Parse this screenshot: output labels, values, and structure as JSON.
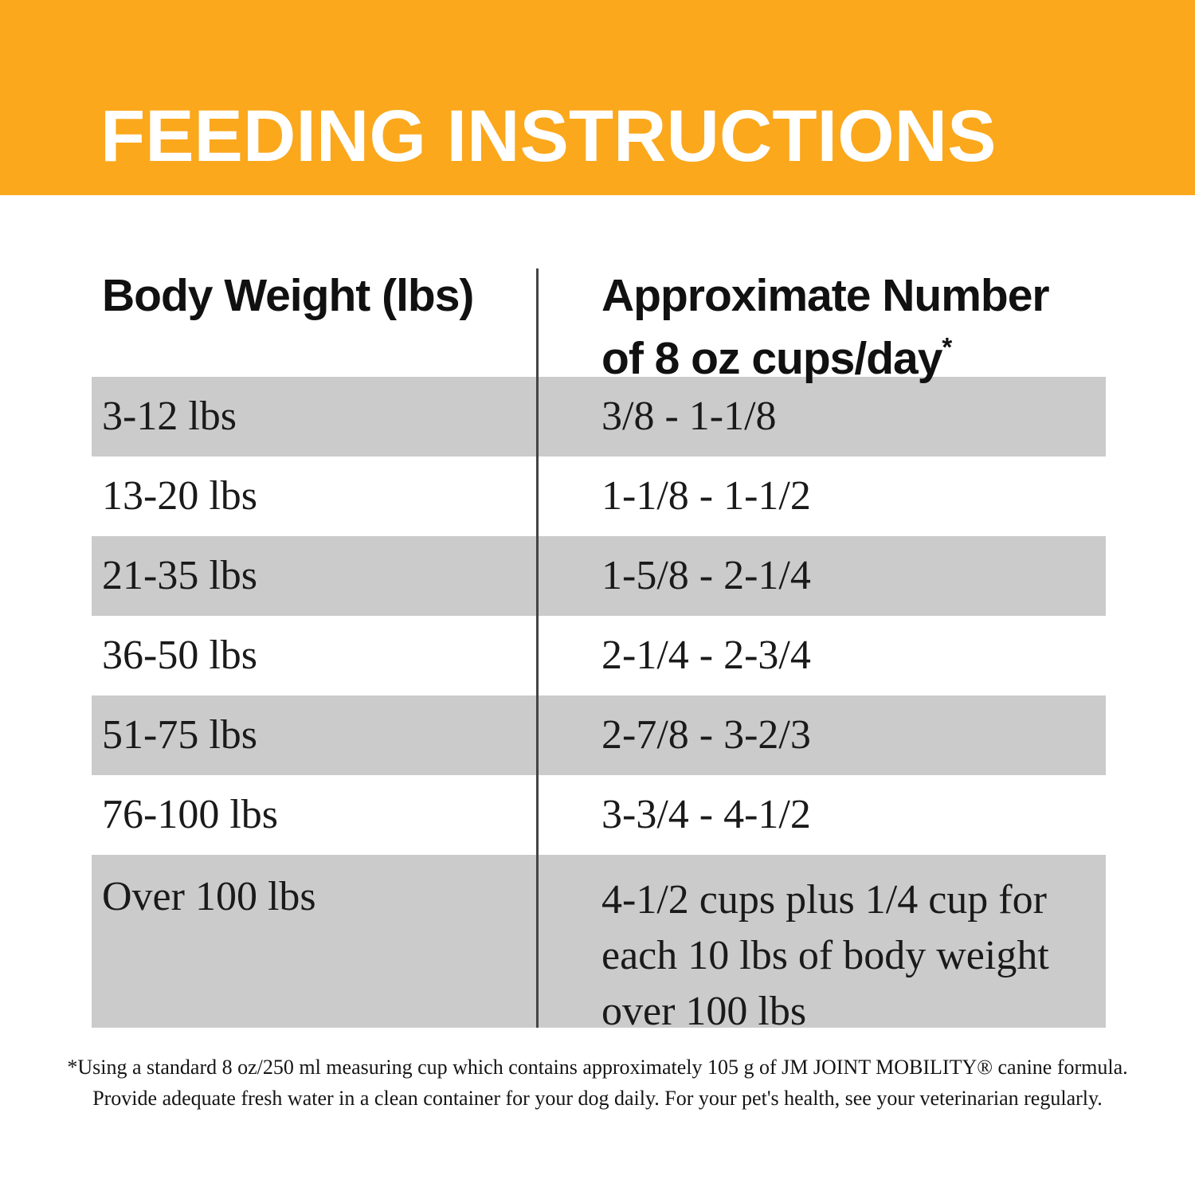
{
  "banner": {
    "title": "FEEDING INSTRUCTIONS"
  },
  "colors": {
    "banner_orange": "#FBA81D",
    "row_gray": "#cbcbcb",
    "divider_gray": "#444444",
    "banner_text": "#ffffff",
    "body_text": "#1a1a1a"
  },
  "table": {
    "header": {
      "col1": "Body Weight (lbs)",
      "col2_line1": "Approximate Number",
      "col2_line2": "of 8 oz cups/day",
      "col2_asterisk": "*"
    },
    "rows": [
      {
        "weight": "3-12 lbs",
        "cups": "3/8 - 1-1/8"
      },
      {
        "weight": "13-20 lbs",
        "cups": "1-1/8 - 1-1/2"
      },
      {
        "weight": "21-35 lbs",
        "cups": "1-5/8 - 2-1/4"
      },
      {
        "weight": "36-50 lbs",
        "cups": "2-1/4 - 2-3/4"
      },
      {
        "weight": "51-75 lbs",
        "cups": "2-7/8 - 3-2/3"
      },
      {
        "weight": "76-100 lbs",
        "cups": "3-3/4 - 4-1/2"
      },
      {
        "weight": "Over 100 lbs",
        "cups": "4-1/2 cups plus 1/4 cup for each 10 lbs of body weight over 100 lbs"
      }
    ]
  },
  "footnote": {
    "line1": "*Using a standard 8 oz/250 ml measuring cup which contains approximately 105 g of JM JOINT MOBILITY® canine formula.",
    "line2": "Provide adequate fresh water in a clean container for your dog daily. For your pet's health, see your veterinarian regularly."
  }
}
